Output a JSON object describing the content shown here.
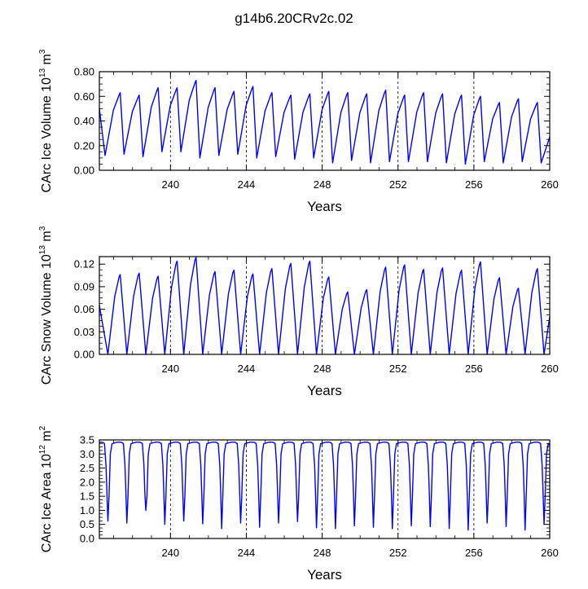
{
  "chart_data": {
    "title": "g14b6.20CRv2c.02",
    "type": "line",
    "x_start": 236.25,
    "x_end": 260,
    "line_color": "#0000ff",
    "panels": [
      {
        "name": "ice-volume",
        "ylabel_pre": "CArc Ice Volume 10",
        "ylabel_exp": "13",
        "ylabel_unit": " m",
        "ylabel_unit_exp": "3",
        "xlabel": "Years",
        "ylim": [
          0,
          0.8
        ],
        "yticks": [
          {
            "v": 0.0,
            "label": "0.00"
          },
          {
            "v": 0.2,
            "label": "0.20"
          },
          {
            "v": 0.4,
            "label": "0.40"
          },
          {
            "v": 0.6,
            "label": "0.60"
          },
          {
            "v": 0.8,
            "label": "0.80"
          }
        ],
        "xticks": [
          {
            "v": 240,
            "label": "240"
          },
          {
            "v": 244,
            "label": "244"
          },
          {
            "v": 248,
            "label": "248"
          },
          {
            "v": 252,
            "label": "252"
          },
          {
            "v": 256,
            "label": "256"
          },
          {
            "v": 260,
            "label": "260"
          }
        ],
        "series": {
          "max": [
            0.63,
            0.61,
            0.67,
            0.67,
            0.73,
            0.67,
            0.64,
            0.68,
            0.63,
            0.61,
            0.62,
            0.64,
            0.63,
            0.62,
            0.65,
            0.61,
            0.63,
            0.62,
            0.61,
            0.6,
            0.55,
            0.58,
            0.55
          ],
          "min": [
            0.12,
            0.13,
            0.11,
            0.15,
            0.15,
            0.1,
            0.12,
            0.13,
            0.1,
            0.11,
            0.09,
            0.1,
            0.06,
            0.08,
            0.06,
            0.07,
            0.07,
            0.07,
            0.06,
            0.05,
            0.07,
            0.06,
            0.07,
            0.06
          ],
          "min_phase": 0.55,
          "max_phase": 0.35
        }
      },
      {
        "name": "snow-volume",
        "ylabel_pre": "CArc Snow Volume 10",
        "ylabel_exp": "13",
        "ylabel_unit": " m",
        "ylabel_unit_exp": "3",
        "xlabel": "Years",
        "ylim": [
          0,
          0.13
        ],
        "yticks": [
          {
            "v": 0.0,
            "label": "0.00"
          },
          {
            "v": 0.03,
            "label": "0.03"
          },
          {
            "v": 0.06,
            "label": "0.06"
          },
          {
            "v": 0.09,
            "label": "0.09"
          },
          {
            "v": 0.12,
            "label": "0.12"
          }
        ],
        "xticks": [
          {
            "v": 240,
            "label": "240"
          },
          {
            "v": 244,
            "label": "244"
          },
          {
            "v": 248,
            "label": "248"
          },
          {
            "v": 252,
            "label": "252"
          },
          {
            "v": 256,
            "label": "256"
          },
          {
            "v": 260,
            "label": "260"
          }
        ],
        "series": {
          "max": [
            0.106,
            0.108,
            0.104,
            0.124,
            0.129,
            0.11,
            0.112,
            0.107,
            0.114,
            0.121,
            0.124,
            0.103,
            0.083,
            0.086,
            0.116,
            0.119,
            0.113,
            0.115,
            0.112,
            0.123,
            0.102,
            0.088,
            0.114
          ],
          "min": [
            0.0,
            0.0,
            0.0,
            0.0,
            0.0,
            0.0,
            0.0,
            0.0,
            0.0,
            0.0,
            0.0,
            0.0,
            0.0,
            0.0,
            0.0,
            0.0,
            0.0,
            0.0,
            0.0,
            0.0,
            0.0,
            0.0,
            0.0,
            0.0
          ],
          "min_phase": 0.7,
          "max_phase": 0.35
        }
      },
      {
        "name": "ice-area",
        "ylabel_pre": "CArc Ice Area 10",
        "ylabel_exp": "12",
        "ylabel_unit": " m",
        "ylabel_unit_exp": "2",
        "xlabel": "Years",
        "ylim": [
          0,
          3.5
        ],
        "yticks": [
          {
            "v": 0.0,
            "label": "0.0"
          },
          {
            "v": 0.5,
            "label": "0.5"
          },
          {
            "v": 1.0,
            "label": "1.0"
          },
          {
            "v": 1.5,
            "label": "1.5"
          },
          {
            "v": 2.0,
            "label": "2.0"
          },
          {
            "v": 2.5,
            "label": "2.5"
          },
          {
            "v": 3.0,
            "label": "3.0"
          },
          {
            "v": 3.5,
            "label": "3.5"
          }
        ],
        "xticks": [
          {
            "v": 240,
            "label": "240"
          },
          {
            "v": 244,
            "label": "244"
          },
          {
            "v": 248,
            "label": "248"
          },
          {
            "v": 252,
            "label": "252"
          },
          {
            "v": 256,
            "label": "256"
          },
          {
            "v": 260,
            "label": "260"
          }
        ],
        "series": {
          "plateau": 3.42,
          "min": [
            0.62,
            0.55,
            1.0,
            0.5,
            0.62,
            0.52,
            0.35,
            0.55,
            0.4,
            0.55,
            0.6,
            0.38,
            0.35,
            0.45,
            0.4,
            0.35,
            0.45,
            0.42,
            0.35,
            0.3,
            0.55,
            0.42,
            0.3,
            0.5
          ],
          "min_phase": 0.7
        }
      }
    ]
  }
}
